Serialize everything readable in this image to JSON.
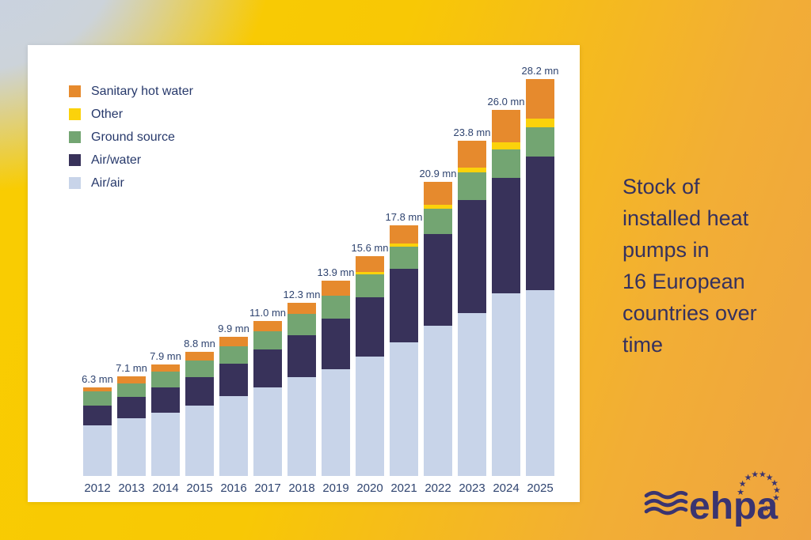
{
  "caption": {
    "lines": [
      "Stock of",
      "installed heat",
      "pumps in",
      "16 European",
      "countries over",
      "time"
    ]
  },
  "logo": {
    "text": "ehpa"
  },
  "colors": {
    "sanitary_hot_water": "#e68a2d",
    "other": "#fbd20b",
    "ground_source": "#73a572",
    "air_water": "#38325a",
    "air_air": "#c8d4e9",
    "label_text": "#2f4470",
    "caption_text": "#35315e",
    "logo_navy": "#3a3470"
  },
  "chart_data": {
    "type": "bar",
    "subtype": "stacked",
    "title": "Stock of installed heat pumps in 16 European countries over time",
    "unit": "mn",
    "grid": false,
    "legend_position": "top-left",
    "categories": [
      "2012",
      "2013",
      "2014",
      "2015",
      "2016",
      "2017",
      "2018",
      "2019",
      "2020",
      "2021",
      "2022",
      "2023",
      "2024",
      "2025"
    ],
    "totals": [
      6.3,
      7.1,
      7.9,
      8.8,
      9.9,
      11.0,
      12.3,
      13.9,
      15.6,
      17.8,
      20.9,
      23.8,
      26.0,
      28.2
    ],
    "total_labels": [
      "6.3 mn",
      "7.1 mn",
      "7.9 mn",
      "8.8 mn",
      "9.9 mn",
      "11.0 mn",
      "12.3 mn",
      "13.9 mn",
      "15.6 mn",
      "17.8 mn",
      "20.9 mn",
      "23.8 mn",
      "26.0 mn",
      "28.2 mn"
    ],
    "series": [
      {
        "name": "Air/air",
        "color": "#c8d4e9",
        "values": [
          3.6,
          4.1,
          4.5,
          5.0,
          5.7,
          6.3,
          7.0,
          7.6,
          8.5,
          9.5,
          10.7,
          11.6,
          13.0,
          13.2
        ]
      },
      {
        "name": "Air/water",
        "color": "#38325a",
        "values": [
          1.4,
          1.5,
          1.8,
          2.0,
          2.3,
          2.7,
          3.0,
          3.6,
          4.2,
          5.2,
          6.5,
          8.0,
          8.2,
          9.5
        ]
      },
      {
        "name": "Ground source",
        "color": "#73a572",
        "values": [
          1.0,
          1.0,
          1.1,
          1.2,
          1.2,
          1.3,
          1.5,
          1.6,
          1.6,
          1.6,
          1.8,
          2.0,
          2.0,
          2.1
        ]
      },
      {
        "name": "Other",
        "color": "#fbd20b",
        "values": [
          0,
          0,
          0,
          0,
          0,
          0,
          0,
          0,
          0.2,
          0.2,
          0.3,
          0.3,
          0.5,
          0.6
        ]
      },
      {
        "name": "Sanitary hot water",
        "color": "#e68a2d",
        "values": [
          0.3,
          0.5,
          0.5,
          0.6,
          0.7,
          0.7,
          0.8,
          1.1,
          1.1,
          1.3,
          1.6,
          1.9,
          2.3,
          2.8
        ]
      }
    ],
    "legend_order": [
      "Sanitary hot water",
      "Other",
      "Ground source",
      "Air/water",
      "Air/air"
    ]
  }
}
